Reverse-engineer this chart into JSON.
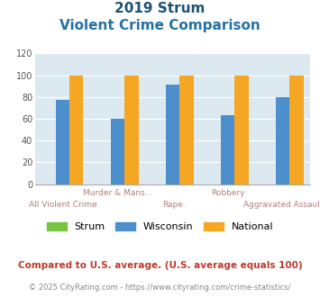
{
  "title_line1": "2019 Strum",
  "title_line2": "Violent Crime Comparison",
  "categories": [
    "All Violent Crime",
    "Murder & Mans...",
    "Rape",
    "Robbery",
    "Aggravated Assault"
  ],
  "strum": [
    0,
    0,
    0,
    0,
    0
  ],
  "wisconsin": [
    77,
    60,
    91,
    63,
    80
  ],
  "national": [
    100,
    100,
    100,
    100,
    100
  ],
  "colors": {
    "strum": "#76c442",
    "wisconsin": "#4d8fcc",
    "national": "#f5a623"
  },
  "ylim": [
    0,
    120
  ],
  "yticks": [
    0,
    20,
    40,
    60,
    80,
    100,
    120
  ],
  "xlabel_top": [
    "",
    "Murder & Mans...",
    "",
    "Robbery",
    ""
  ],
  "xlabel_bottom": [
    "All Violent Crime",
    "",
    "Rape",
    "",
    "Aggravated Assault"
  ],
  "footnote1": "Compared to U.S. average. (U.S. average equals 100)",
  "footnote2": "© 2025 CityRating.com - https://www.cityrating.com/crime-statistics/",
  "title_color": "#1a5276",
  "subtitle_color": "#2471a3",
  "footnote1_color": "#c0392b",
  "footnote2_color": "#888888",
  "bg_color": "#dce9f0",
  "legend_labels": [
    "Strum",
    "Wisconsin",
    "National"
  ],
  "bar_width": 0.25
}
